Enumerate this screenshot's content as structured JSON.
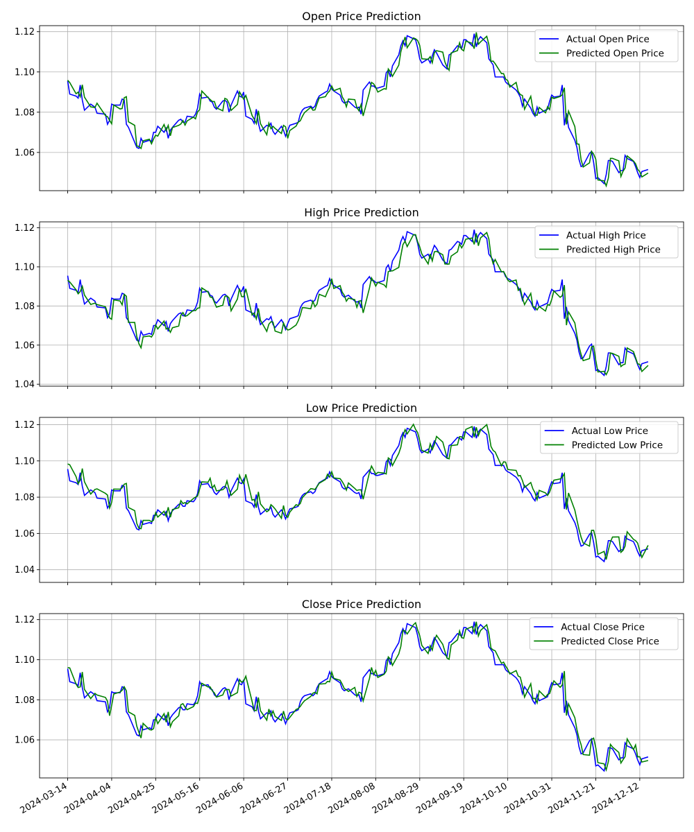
{
  "chart_data": [
    {
      "type": "line",
      "title": "Open Price Prediction",
      "ylim": [
        1.041,
        1.123
      ],
      "yticks": [
        "1.06",
        "1.08",
        "1.10",
        "1.12"
      ],
      "grid": true,
      "legend": "upper-right",
      "series": [
        {
          "name": "Actual Open Price",
          "color": "#0000ff",
          "key": "actual"
        },
        {
          "name": "Predicted Open Price",
          "color": "#008000",
          "key": "pred"
        }
      ]
    },
    {
      "type": "line",
      "title": "High Price Prediction",
      "ylim": [
        1.039,
        1.123
      ],
      "yticks": [
        "1.04",
        "1.06",
        "1.08",
        "1.10",
        "1.12"
      ],
      "grid": true,
      "legend": "upper-right",
      "series": [
        {
          "name": "Actual High Price",
          "color": "#0000ff",
          "key": "actual"
        },
        {
          "name": "Predicted High Price",
          "color": "#008000",
          "key": "pred"
        }
      ]
    },
    {
      "type": "line",
      "title": "Low Price Prediction",
      "ylim": [
        1.033,
        1.124
      ],
      "yticks": [
        "1.04",
        "1.06",
        "1.08",
        "1.10",
        "1.12"
      ],
      "grid": true,
      "legend": "upper-right",
      "series": [
        {
          "name": "Actual Low Price",
          "color": "#0000ff",
          "key": "actual"
        },
        {
          "name": "Predicted Low Price",
          "color": "#008000",
          "key": "pred"
        }
      ]
    },
    {
      "type": "line",
      "title": "Close Price Prediction",
      "ylim": [
        1.041,
        1.123
      ],
      "yticks": [
        "1.06",
        "1.08",
        "1.10",
        "1.12"
      ],
      "grid": true,
      "legend": "upper-right",
      "series": [
        {
          "name": "Actual Close Price",
          "color": "#0000ff",
          "key": "actual"
        },
        {
          "name": "Predicted Close Price",
          "color": "#008000",
          "key": "pred"
        }
      ]
    }
  ],
  "x_axis": {
    "start": "2024-03-14",
    "end": "2024-12-19",
    "xticks": [
      "2024-03-14",
      "2024-04-04",
      "2024-04-25",
      "2024-05-16",
      "2024-06-06",
      "2024-06-27",
      "2024-07-18",
      "2024-08-08",
      "2024-08-29",
      "2024-09-19",
      "2024-10-10",
      "2024-10-31",
      "2024-11-21",
      "2024-12-12"
    ]
  },
  "actual_anchors": [
    [
      "2024-03-14",
      1.0955
    ],
    [
      "2024-03-15",
      1.089
    ],
    [
      "2024-03-18",
      1.088
    ],
    [
      "2024-03-19",
      1.087
    ],
    [
      "2024-03-20",
      1.0935
    ],
    [
      "2024-03-21",
      1.086
    ],
    [
      "2024-03-22",
      1.081
    ],
    [
      "2024-03-25",
      1.084
    ],
    [
      "2024-03-27",
      1.0825
    ],
    [
      "2024-03-28",
      1.0795
    ],
    [
      "2024-04-01",
      1.079
    ],
    [
      "2024-04-02",
      1.074
    ],
    [
      "2024-04-03",
      1.076
    ],
    [
      "2024-04-04",
      1.084
    ],
    [
      "2024-04-05",
      1.0835
    ],
    [
      "2024-04-08",
      1.0835
    ],
    [
      "2024-04-09",
      1.0865
    ],
    [
      "2024-04-10",
      1.086
    ],
    [
      "2024-04-11",
      1.074
    ],
    [
      "2024-04-12",
      1.0725
    ],
    [
      "2024-04-15",
      1.065
    ],
    [
      "2024-04-16",
      1.0625
    ],
    [
      "2024-04-17",
      1.062
    ],
    [
      "2024-04-18",
      1.067
    ],
    [
      "2024-04-19",
      1.065
    ],
    [
      "2024-04-22",
      1.066
    ],
    [
      "2024-04-23",
      1.0655
    ],
    [
      "2024-04-24",
      1.07
    ],
    [
      "2024-04-25",
      1.07
    ],
    [
      "2024-04-26",
      1.073
    ],
    [
      "2024-04-29",
      1.07
    ],
    [
      "2024-04-30",
      1.072
    ],
    [
      "2024-05-01",
      1.067
    ],
    [
      "2024-05-02",
      1.071
    ],
    [
      "2024-05-03",
      1.0725
    ],
    [
      "2024-05-06",
      1.076
    ],
    [
      "2024-05-07",
      1.0765
    ],
    [
      "2024-05-08",
      1.075
    ],
    [
      "2024-05-09",
      1.075
    ],
    [
      "2024-05-10",
      1.078
    ],
    [
      "2024-05-13",
      1.0775
    ],
    [
      "2024-05-14",
      1.079
    ],
    [
      "2024-05-15",
      1.082
    ],
    [
      "2024-05-16",
      1.089
    ],
    [
      "2024-05-17",
      1.087
    ],
    [
      "2024-05-20",
      1.0875
    ],
    [
      "2024-05-21",
      1.0855
    ],
    [
      "2024-05-22",
      1.085
    ],
    [
      "2024-05-23",
      1.0825
    ],
    [
      "2024-05-24",
      1.0815
    ],
    [
      "2024-05-27",
      1.0855
    ],
    [
      "2024-05-28",
      1.086
    ],
    [
      "2024-05-29",
      1.085
    ],
    [
      "2024-05-30",
      1.08
    ],
    [
      "2024-05-31",
      1.0835
    ],
    [
      "2024-06-03",
      1.0905
    ],
    [
      "2024-06-04",
      1.088
    ],
    [
      "2024-06-05",
      1.0875
    ],
    [
      "2024-06-06",
      1.09
    ],
    [
      "2024-06-07",
      1.078
    ],
    [
      "2024-06-10",
      1.0765
    ],
    [
      "2024-06-11",
      1.0745
    ],
    [
      "2024-06-12",
      1.0815
    ],
    [
      "2024-06-13",
      1.0745
    ],
    [
      "2024-06-14",
      1.0705
    ],
    [
      "2024-06-17",
      1.0735
    ],
    [
      "2024-06-18",
      1.073
    ],
    [
      "2024-06-19",
      1.0745
    ],
    [
      "2024-06-20",
      1.0705
    ],
    [
      "2024-06-21",
      1.069
    ],
    [
      "2024-06-24",
      1.073
    ],
    [
      "2024-06-25",
      1.071
    ],
    [
      "2024-06-26",
      1.068
    ],
    [
      "2024-06-27",
      1.071
    ],
    [
      "2024-06-28",
      1.0735
    ],
    [
      "2024-07-01",
      1.0745
    ],
    [
      "2024-07-02",
      1.075
    ],
    [
      "2024-07-03",
      1.079
    ],
    [
      "2024-07-04",
      1.081
    ],
    [
      "2024-07-05",
      1.082
    ],
    [
      "2024-07-08",
      1.083
    ],
    [
      "2024-07-09",
      1.082
    ],
    [
      "2024-07-10",
      1.083
    ],
    [
      "2024-07-11",
      1.086
    ],
    [
      "2024-07-12",
      1.088
    ],
    [
      "2024-07-15",
      1.09
    ],
    [
      "2024-07-16",
      1.0905
    ],
    [
      "2024-07-17",
      1.094
    ],
    [
      "2024-07-18",
      1.0915
    ],
    [
      "2024-07-19",
      1.0905
    ],
    [
      "2024-07-22",
      1.0885
    ],
    [
      "2024-07-23",
      1.0855
    ],
    [
      "2024-07-24",
      1.0845
    ],
    [
      "2024-07-25",
      1.085
    ],
    [
      "2024-07-26",
      1.0855
    ],
    [
      "2024-07-29",
      1.0825
    ],
    [
      "2024-07-30",
      1.082
    ],
    [
      "2024-07-31",
      1.0825
    ],
    [
      "2024-08-01",
      1.079
    ],
    [
      "2024-08-02",
      1.091
    ],
    [
      "2024-08-05",
      1.095
    ],
    [
      "2024-08-06",
      1.093
    ],
    [
      "2024-08-07",
      1.093
    ],
    [
      "2024-08-08",
      1.092
    ],
    [
      "2024-08-09",
      1.092
    ],
    [
      "2024-08-12",
      1.093
    ],
    [
      "2024-08-13",
      1.0995
    ],
    [
      "2024-08-14",
      1.101
    ],
    [
      "2024-08-15",
      1.0975
    ],
    [
      "2024-08-16",
      1.103
    ],
    [
      "2024-08-19",
      1.1085
    ],
    [
      "2024-08-20",
      1.113
    ],
    [
      "2024-08-21",
      1.1155
    ],
    [
      "2024-08-22",
      1.113
    ],
    [
      "2024-08-23",
      1.118
    ],
    [
      "2024-08-26",
      1.1165
    ],
    [
      "2024-08-27",
      1.116
    ],
    [
      "2024-08-28",
      1.112
    ],
    [
      "2024-08-29",
      1.1065
    ],
    [
      "2024-08-30",
      1.1045
    ],
    [
      "2024-09-02",
      1.1065
    ],
    [
      "2024-09-03",
      1.1045
    ],
    [
      "2024-09-04",
      1.108
    ],
    [
      "2024-09-05",
      1.111
    ],
    [
      "2024-09-06",
      1.1095
    ],
    [
      "2024-09-09",
      1.1035
    ],
    [
      "2024-09-10",
      1.1025
    ],
    [
      "2024-09-11",
      1.1015
    ],
    [
      "2024-09-12",
      1.1085
    ],
    [
      "2024-09-13",
      1.109
    ],
    [
      "2024-09-16",
      1.113
    ],
    [
      "2024-09-17",
      1.1125
    ],
    [
      "2024-09-18",
      1.1115
    ],
    [
      "2024-09-19",
      1.116
    ],
    [
      "2024-09-20",
      1.116
    ],
    [
      "2024-09-23",
      1.113
    ],
    [
      "2024-09-24",
      1.119
    ],
    [
      "2024-09-25",
      1.1125
    ],
    [
      "2024-09-26",
      1.116
    ],
    [
      "2024-09-27",
      1.1175
    ],
    [
      "2024-09-30",
      1.1145
    ],
    [
      "2024-10-01",
      1.1065
    ],
    [
      "2024-10-02",
      1.105
    ],
    [
      "2024-10-03",
      1.1035
    ],
    [
      "2024-10-04",
      1.0975
    ],
    [
      "2024-10-07",
      1.0975
    ],
    [
      "2024-10-08",
      1.0975
    ],
    [
      "2024-10-09",
      1.095
    ],
    [
      "2024-10-10",
      1.094
    ],
    [
      "2024-10-11",
      1.0935
    ],
    [
      "2024-10-14",
      1.091
    ],
    [
      "2024-10-15",
      1.0895
    ],
    [
      "2024-10-16",
      1.0875
    ],
    [
      "2024-10-17",
      1.083
    ],
    [
      "2024-10-18",
      1.0865
    ],
    [
      "2024-10-21",
      1.082
    ],
    [
      "2024-10-22",
      1.0795
    ],
    [
      "2024-10-23",
      1.078
    ],
    [
      "2024-10-24",
      1.0825
    ],
    [
      "2024-10-25",
      1.0795
    ],
    [
      "2024-10-28",
      1.081
    ],
    [
      "2024-10-29",
      1.0815
    ],
    [
      "2024-10-30",
      1.0855
    ],
    [
      "2024-10-31",
      1.0885
    ],
    [
      "2024-11-01",
      1.0875
    ],
    [
      "2024-11-04",
      1.088
    ],
    [
      "2024-11-05",
      1.0935
    ],
    [
      "2024-11-06",
      1.0735
    ],
    [
      "2024-11-07",
      1.0795
    ],
    [
      "2024-11-08",
      1.0725
    ],
    [
      "2024-11-11",
      1.066
    ],
    [
      "2024-11-12",
      1.0625
    ],
    [
      "2024-11-13",
      1.0565
    ],
    [
      "2024-11-14",
      1.053
    ],
    [
      "2024-11-15",
      1.0535
    ],
    [
      "2024-11-18",
      1.0595
    ],
    [
      "2024-11-19",
      1.0605
    ],
    [
      "2024-11-20",
      1.055
    ],
    [
      "2024-11-21",
      1.047
    ],
    [
      "2024-11-22",
      1.0475
    ],
    [
      "2024-11-25",
      1.0445
    ],
    [
      "2024-11-26",
      1.049
    ],
    [
      "2024-11-27",
      1.056
    ],
    [
      "2024-11-28",
      1.056
    ],
    [
      "2024-11-29",
      1.0555
    ],
    [
      "2024-12-02",
      1.05
    ],
    [
      "2024-12-03",
      1.051
    ],
    [
      "2024-12-04",
      1.051
    ],
    [
      "2024-12-05",
      1.0585
    ],
    [
      "2024-12-06",
      1.057
    ],
    [
      "2024-12-09",
      1.0555
    ],
    [
      "2024-12-10",
      1.053
    ],
    [
      "2024-12-11",
      1.05
    ],
    [
      "2024-12-12",
      1.0475
    ],
    [
      "2024-12-13",
      1.0505
    ],
    [
      "2024-12-16",
      1.0515
    ]
  ]
}
